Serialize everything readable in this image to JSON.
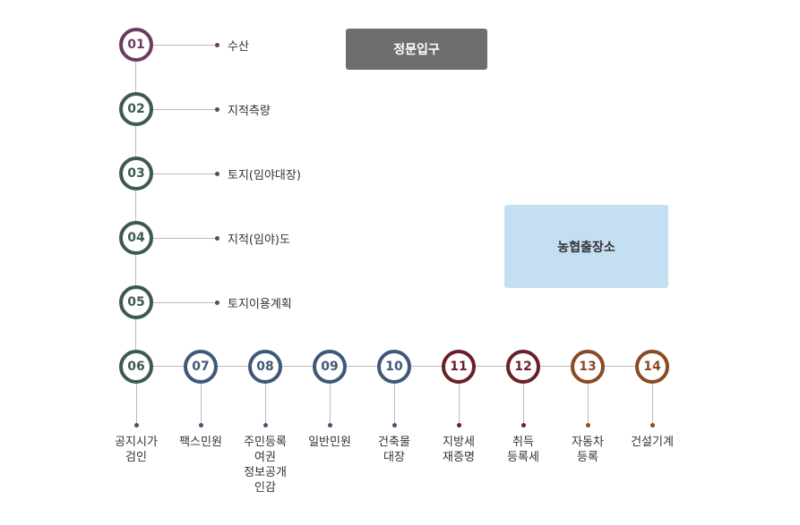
{
  "gate": {
    "label": "정문입구",
    "bg": "#6e6e6e",
    "color": "#ffffff"
  },
  "nh_office": {
    "label": "농협출장소",
    "bg": "#c5dff2",
    "color": "#333333"
  },
  "colors": {
    "teal": "#3d5a52",
    "navy": "#3e5879",
    "maroon": "#6b1f26",
    "brown": "#8a4b25",
    "purple": "#6b3c60"
  },
  "vertical_stations": [
    {
      "num": "01",
      "label": "수산",
      "color": "#6b3c60"
    },
    {
      "num": "02",
      "label": "지적측량",
      "color": "#3d5a52"
    },
    {
      "num": "03",
      "label": "토지(임야대장)",
      "color": "#3d5a52"
    },
    {
      "num": "04",
      "label": "지적(임야)도",
      "color": "#3d5a52"
    },
    {
      "num": "05",
      "label": "토지이용계획",
      "color": "#3d5a52"
    }
  ],
  "horizontal_stations": [
    {
      "num": "06",
      "lines": [
        "공지시가",
        "검인"
      ],
      "color": "#3d5a52"
    },
    {
      "num": "07",
      "lines": [
        "팩스민원"
      ],
      "color": "#3e5879"
    },
    {
      "num": "08",
      "lines": [
        "주민등록",
        "여권",
        "정보공개",
        "인감"
      ],
      "color": "#3e5879"
    },
    {
      "num": "09",
      "lines": [
        "일반민원"
      ],
      "color": "#3e5879"
    },
    {
      "num": "10",
      "lines": [
        "건축물",
        "대장"
      ],
      "color": "#3e5879"
    },
    {
      "num": "11",
      "lines": [
        "지방세",
        "재증명"
      ],
      "color": "#6b1f26"
    },
    {
      "num": "12",
      "lines": [
        "취득",
        "등록세"
      ],
      "color": "#6b1f26"
    },
    {
      "num": "13",
      "lines": [
        "자동차",
        "등록"
      ],
      "color": "#8a4b25"
    },
    {
      "num": "14",
      "lines": [
        "건설기계"
      ],
      "color": "#8a4b25"
    }
  ]
}
